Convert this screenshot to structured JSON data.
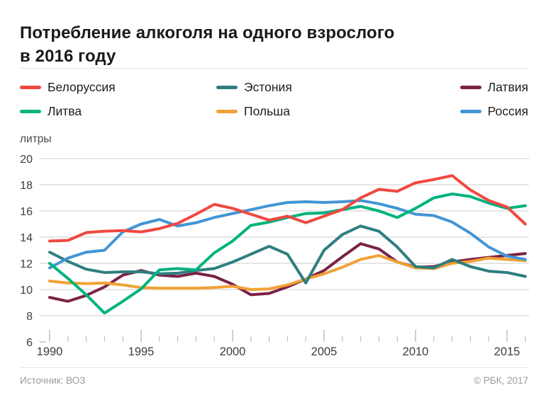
{
  "title": {
    "line1": "Потребление алкоголя на одного взрослого",
    "line2": "в 2016 году"
  },
  "unit_label": "литры",
  "legend": {
    "items": [
      {
        "id": "belarus",
        "label": "Белоруссия",
        "color": "#f04840"
      },
      {
        "id": "estonia",
        "label": "Эстония",
        "color": "#2e7e80"
      },
      {
        "id": "latvia",
        "label": "Латвия",
        "color": "#7b2145"
      },
      {
        "id": "lithuania",
        "label": "Литва",
        "color": "#00b37e"
      },
      {
        "id": "poland",
        "label": "Польша",
        "color": "#f2a134"
      },
      {
        "id": "russia",
        "label": "Россия",
        "color": "#4295d5"
      }
    ]
  },
  "footer": {
    "source": "Источник: ВОЗ",
    "copyright": "© РБК, 2017"
  },
  "chart_data": {
    "type": "line",
    "title": "Потребление алкоголя на одного взрослого в 2016 году",
    "ylabel": "литры",
    "ylim": [
      6,
      20
    ],
    "yticks": [
      20,
      18,
      16,
      14,
      12,
      10,
      8,
      6
    ],
    "gridlines_at": [
      20,
      18,
      16,
      14,
      12,
      10,
      8
    ],
    "grid": true,
    "legend_position": "top",
    "x": [
      1990,
      1991,
      1992,
      1993,
      1994,
      1995,
      1996,
      1997,
      1998,
      1999,
      2000,
      2001,
      2002,
      2003,
      2004,
      2005,
      2006,
      2007,
      2008,
      2009,
      2010,
      2011,
      2012,
      2013,
      2014,
      2015,
      2016
    ],
    "xlabel_ticks": [
      1990,
      1995,
      2000,
      2005,
      2010,
      2015
    ],
    "series": [
      {
        "id": "latvia",
        "name": "Латвия",
        "color": "#7b2145",
        "values": [
          9.4,
          9.1,
          9.55,
          10.2,
          11.1,
          11.45,
          11.1,
          11.0,
          11.25,
          11.0,
          10.4,
          9.6,
          9.7,
          10.2,
          10.8,
          11.45,
          12.5,
          13.5,
          13.1,
          12.1,
          11.7,
          11.75,
          12.1,
          12.3,
          12.45,
          12.6,
          12.75
        ]
      },
      {
        "id": "poland",
        "name": "Польша",
        "color": "#f2a134",
        "values": [
          10.65,
          10.5,
          10.45,
          10.5,
          10.35,
          10.15,
          10.1,
          10.1,
          10.1,
          10.15,
          10.25,
          10.0,
          10.05,
          10.35,
          10.8,
          11.2,
          11.7,
          12.3,
          12.6,
          12.1,
          11.65,
          11.6,
          12.0,
          12.15,
          12.4,
          12.3,
          12.2
        ]
      },
      {
        "id": "estonia",
        "name": "Эстония",
        "color": "#2e7e80",
        "values": [
          12.85,
          12.15,
          11.55,
          11.3,
          11.35,
          11.35,
          11.2,
          11.25,
          11.45,
          11.6,
          12.1,
          12.7,
          13.3,
          12.7,
          10.5,
          13.0,
          14.2,
          14.85,
          14.45,
          13.25,
          11.75,
          11.65,
          12.3,
          11.75,
          11.4,
          11.3,
          11.0
        ]
      },
      {
        "id": "russia",
        "name": "Россия",
        "color": "#4295d5",
        "values": [
          11.65,
          12.4,
          12.85,
          13.0,
          14.4,
          15.0,
          15.35,
          14.85,
          15.1,
          15.5,
          15.8,
          16.1,
          16.4,
          16.65,
          16.7,
          16.65,
          16.7,
          16.8,
          16.55,
          16.2,
          15.75,
          15.65,
          15.15,
          14.3,
          13.25,
          12.55,
          12.3
        ]
      },
      {
        "id": "lithuania",
        "name": "Литва",
        "color": "#00b37e",
        "values": [
          12.0,
          10.85,
          9.6,
          8.2,
          9.1,
          10.05,
          11.5,
          11.6,
          11.5,
          12.8,
          13.7,
          14.9,
          15.15,
          15.5,
          15.8,
          15.85,
          16.1,
          16.35,
          16.0,
          15.5,
          16.2,
          17.0,
          17.3,
          17.1,
          16.6,
          16.2,
          16.4
        ]
      },
      {
        "id": "belarus",
        "name": "Белоруссия",
        "color": "#f04840",
        "values": [
          13.7,
          13.75,
          14.35,
          14.45,
          14.5,
          14.4,
          14.65,
          15.05,
          15.75,
          16.5,
          16.2,
          15.75,
          15.3,
          15.6,
          15.1,
          15.6,
          16.1,
          17.0,
          17.65,
          17.5,
          18.15,
          18.4,
          18.7,
          17.6,
          16.8,
          16.3,
          15.0
        ]
      }
    ]
  }
}
